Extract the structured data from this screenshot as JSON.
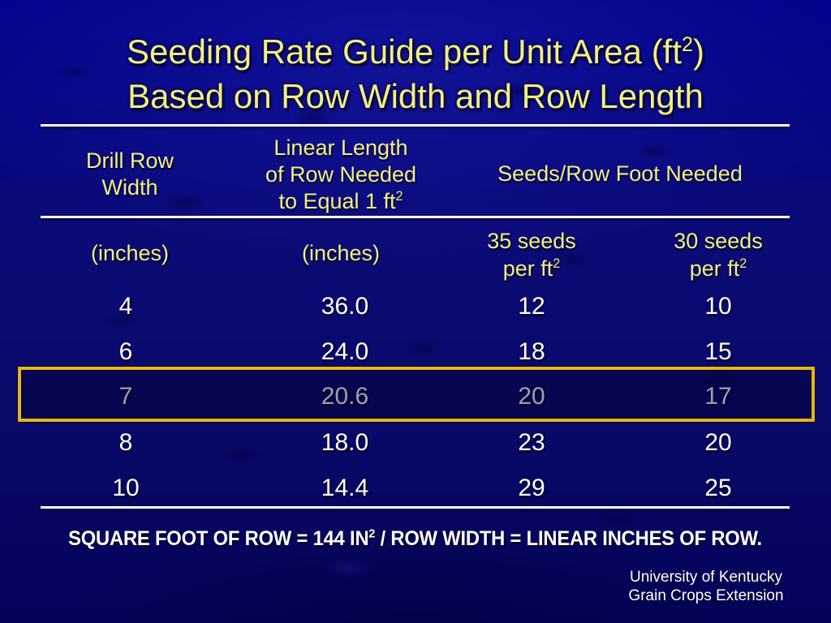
{
  "slide": {
    "title": {
      "line1_pre": "Seeding Rate Guide per Unit Area (ft",
      "line1_sup": "2",
      "line1_post": ")",
      "line2": "Based on Row Width and Row Length"
    },
    "table": {
      "header": {
        "col1_line1": "Drill Row",
        "col1_line2": "Width",
        "col2_line1": "Linear Length",
        "col2_line2": "of Row Needed",
        "col2_line3_pre": "to Equal 1 ft",
        "col2_line3_sup": "2",
        "col34": "Seeds/Row Foot Needed"
      },
      "units": {
        "col1": "(inches)",
        "col2": "(inches)",
        "col3_line1": "35 seeds",
        "col3_line2_pre": "per ft",
        "col3_line2_sup": "2",
        "col4_line1": "30 seeds",
        "col4_line2_pre": "per ft",
        "col4_line2_sup": "2"
      },
      "rows": [
        {
          "drill_row_width_in": "4",
          "linear_length_in": "36.0",
          "seeds_35_per_ft2": "12",
          "seeds_30_per_ft2": "10"
        },
        {
          "drill_row_width_in": "6",
          "linear_length_in": "24.0",
          "seeds_35_per_ft2": "18",
          "seeds_30_per_ft2": "15"
        },
        {
          "drill_row_width_in": "7",
          "linear_length_in": "20.6",
          "seeds_35_per_ft2": "20",
          "seeds_30_per_ft2": "17"
        },
        {
          "drill_row_width_in": "8",
          "linear_length_in": "18.0",
          "seeds_35_per_ft2": "23",
          "seeds_30_per_ft2": "20"
        },
        {
          "drill_row_width_in": "10",
          "linear_length_in": "14.4",
          "seeds_35_per_ft2": "29",
          "seeds_30_per_ft2": "25"
        }
      ],
      "highlighted_row_index": 2
    },
    "footnote": {
      "pre": "SQUARE FOOT OF ROW = 144 IN",
      "sup": "2",
      "post": " / ROW WIDTH = LINEAR INCHES OF ROW."
    },
    "credit": {
      "line1": "University of Kentucky",
      "line2": "Grain Crops Extension"
    },
    "colors": {
      "background": "#0b0b77",
      "title_text": "#f2ee85",
      "body_text": "#ffffff",
      "rule_line": "#ffffff",
      "highlight_border": "#e5b41f"
    }
  }
}
